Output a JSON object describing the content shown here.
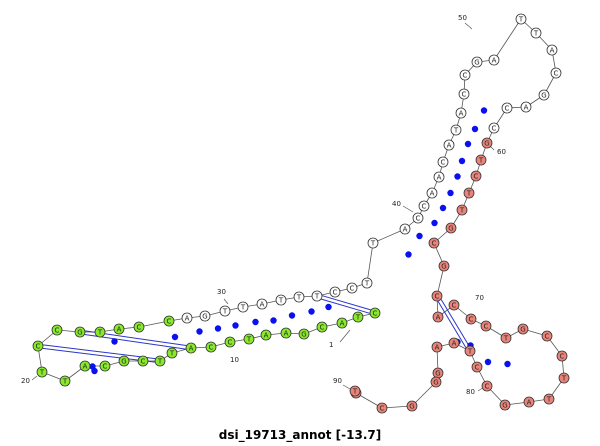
{
  "title": "dsi_19713_annot [-13.7]",
  "colors": {
    "green": "#88ea2a",
    "red": "#ea847a",
    "white": "#ffffff",
    "pair_dot": "#0a10ee",
    "pair_line": "#2a36c8",
    "backbone": "#555555"
  },
  "sequence": [
    "C",
    "T",
    "A",
    "C",
    "G",
    "A",
    "A",
    "T",
    "C",
    "C",
    "A",
    "T",
    "T",
    "C",
    "G",
    "C",
    "A",
    "T",
    "T",
    "C",
    "C",
    "G",
    "T",
    "A",
    "C",
    "C",
    "A",
    "G",
    "T",
    "T",
    "A",
    "T",
    "T",
    "T",
    "C",
    "C",
    "T",
    "T",
    "A",
    "C",
    "C",
    "A",
    "A",
    "C",
    "A",
    "T",
    "A",
    "C",
    "C",
    "G",
    "A",
    "T",
    "T",
    "A",
    "C",
    "G",
    "A",
    "C",
    "C",
    "G",
    "T",
    "C",
    "T",
    "T",
    "G",
    "C",
    "G",
    "C",
    "A",
    "C",
    "C",
    "C",
    "T",
    "G",
    "C",
    "C",
    "T",
    "T",
    "A",
    "G",
    "C",
    "C",
    "T",
    "A",
    "A",
    "G",
    "G",
    "G",
    "C",
    "T",
    "T"
  ],
  "base_colors": [
    "green",
    "green",
    "green",
    "green",
    "green",
    "green",
    "green",
    "green",
    "green",
    "green",
    "green",
    "green",
    "green",
    "green",
    "green",
    "green",
    "green",
    "green",
    "green",
    "green",
    "green",
    "green",
    "green",
    "green",
    "green",
    "green",
    "white",
    "white",
    "white",
    "white",
    "white",
    "white",
    "white",
    "white",
    "white",
    "white",
    "white",
    "white",
    "white",
    "white",
    "white",
    "white",
    "white",
    "white",
    "white",
    "white",
    "white",
    "white",
    "white",
    "white",
    "white",
    "white",
    "white",
    "white",
    "white",
    "white",
    "white",
    "white",
    "white",
    "red",
    "red",
    "red",
    "red",
    "red",
    "red",
    "red",
    "red",
    "red",
    "red",
    "red",
    "red",
    "red",
    "red",
    "red",
    "red",
    "red",
    "red",
    "red",
    "red",
    "red",
    "red",
    "red",
    "red",
    "red",
    "red",
    "red",
    "red",
    "red",
    "red",
    "red",
    "red"
  ],
  "pairs": [
    [
      1,
      34
    ],
    [
      2,
      33
    ],
    [
      3,
      32
    ],
    [
      4,
      31
    ],
    [
      5,
      30
    ],
    [
      6,
      29
    ],
    [
      7,
      28
    ],
    [
      8,
      27
    ],
    [
      9,
      26
    ],
    [
      10,
      25
    ],
    [
      11,
      22
    ],
    [
      12,
      21
    ],
    [
      13,
      20
    ],
    [
      14,
      19
    ],
    [
      15,
      18
    ],
    [
      38,
      67
    ],
    [
      39,
      66
    ],
    [
      40,
      65
    ],
    [
      41,
      64
    ],
    [
      42,
      63
    ],
    [
      43,
      62
    ],
    [
      44,
      61
    ],
    [
      45,
      60
    ],
    [
      46,
      59
    ],
    [
      47,
      58
    ],
    [
      68,
      83
    ],
    [
      69,
      82
    ],
    [
      70,
      81
    ],
    [
      71,
      80
    ],
    [
      72,
      79
    ]
  ],
  "double_pairs": [
    [
      1,
      34
    ],
    [
      11,
      22
    ],
    [
      13,
      20
    ],
    [
      68,
      83
    ]
  ],
  "number_labels": [
    {
      "text": "1",
      "base": 1
    },
    {
      "text": "10",
      "base": 10
    },
    {
      "text": "20",
      "base": 20
    },
    {
      "text": "30",
      "base": 30
    },
    {
      "text": "40",
      "base": 40
    },
    {
      "text": "50",
      "base": 50
    },
    {
      "text": "60",
      "base": 60
    },
    {
      "text": "70",
      "base": 70
    },
    {
      "text": "80",
      "base": 80
    },
    {
      "text": "90",
      "base": 90
    }
  ]
}
